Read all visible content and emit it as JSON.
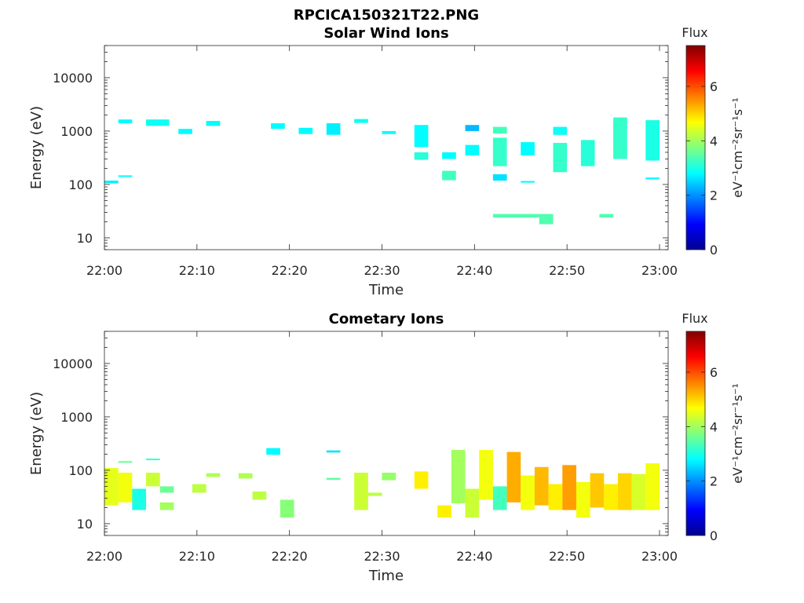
{
  "figure": {
    "title": "RPCICA150321T22.PNG"
  },
  "chart_data": [
    {
      "type": "heatmap",
      "title": "Solar Wind Ions",
      "xlabel": "Time",
      "ylabel": "Energy (eV)",
      "x_ticks": [
        "22:00",
        "22:10",
        "22:20",
        "22:30",
        "22:40",
        "22:50",
        "23:00"
      ],
      "xlim": [
        "22:00",
        "23:00"
      ],
      "y_scale": "log",
      "y_ticks": [
        "10",
        "100",
        "1000",
        "10000"
      ],
      "ylim": [
        6,
        40000
      ],
      "colorbar": {
        "title": "Flux",
        "label": "eV⁻¹cm⁻²sr⁻¹s⁻¹",
        "ticks": [
          "0",
          "2",
          "4",
          "6"
        ],
        "range": [
          0,
          7.5
        ],
        "colormap": "jet"
      },
      "cells": [
        {
          "t0": "22:00",
          "t1": "22:01.5",
          "e0": 105,
          "e1": 118,
          "flux": 2.7
        },
        {
          "t0": "22:01.5",
          "t1": "22:03",
          "e0": 1400,
          "e1": 1650,
          "flux": 2.8
        },
        {
          "t0": "22:01.5",
          "t1": "22:03",
          "e0": 138,
          "e1": 148,
          "flux": 2.8
        },
        {
          "t0": "22:04.5",
          "t1": "22:07",
          "e0": 1250,
          "e1": 1650,
          "flux": 2.9
        },
        {
          "t0": "22:08",
          "t1": "22:09.5",
          "e0": 880,
          "e1": 1100,
          "flux": 2.8
        },
        {
          "t0": "22:11",
          "t1": "22:12.5",
          "e0": 1250,
          "e1": 1550,
          "flux": 2.8
        },
        {
          "t0": "22:18",
          "t1": "22:19.5",
          "e0": 1100,
          "e1": 1400,
          "flux": 2.8
        },
        {
          "t0": "22:21",
          "t1": "22:22.5",
          "e0": 880,
          "e1": 1150,
          "flux": 2.8
        },
        {
          "t0": "22:24",
          "t1": "22:25.5",
          "e0": 850,
          "e1": 1400,
          "flux": 2.7
        },
        {
          "t0": "22:27",
          "t1": "22:28.5",
          "e0": 1420,
          "e1": 1680,
          "flux": 2.9
        },
        {
          "t0": "22:30",
          "t1": "22:31.5",
          "e0": 880,
          "e1": 1000,
          "flux": 2.8
        },
        {
          "t0": "22:33.5",
          "t1": "22:35",
          "e0": 500,
          "e1": 1300,
          "flux": 2.8
        },
        {
          "t0": "22:33.5",
          "t1": "22:35",
          "e0": 290,
          "e1": 400,
          "flux": 3.1
        },
        {
          "t0": "22:36.5",
          "t1": "22:38",
          "e0": 300,
          "e1": 400,
          "flux": 2.8
        },
        {
          "t0": "22:36.5",
          "t1": "22:38",
          "e0": 120,
          "e1": 180,
          "flux": 3.3
        },
        {
          "t0": "22:39",
          "t1": "22:40.5",
          "e0": 1000,
          "e1": 1300,
          "flux": 2.3
        },
        {
          "t0": "22:39",
          "t1": "22:40.5",
          "e0": 350,
          "e1": 550,
          "flux": 2.8
        },
        {
          "t0": "22:42",
          "t1": "22:43.5",
          "e0": 220,
          "e1": 750,
          "flux": 3.2
        },
        {
          "t0": "22:42",
          "t1": "22:43.5",
          "e0": 900,
          "e1": 1200,
          "flux": 3.3
        },
        {
          "t0": "22:42",
          "t1": "22:43.5",
          "e0": 118,
          "e1": 155,
          "flux": 2.6
        },
        {
          "t0": "22:42",
          "t1": "22:47",
          "e0": 24,
          "e1": 28,
          "flux": 3.4
        },
        {
          "t0": "22:47",
          "t1": "22:48.5",
          "e0": 18,
          "e1": 28,
          "flux": 3.4
        },
        {
          "t0": "22:45",
          "t1": "22:46.5",
          "e0": 350,
          "e1": 620,
          "flux": 2.8
        },
        {
          "t0": "22:45",
          "t1": "22:46.5",
          "e0": 108,
          "e1": 116,
          "flux": 2.8
        },
        {
          "t0": "22:48.5",
          "t1": "22:50",
          "e0": 170,
          "e1": 600,
          "flux": 3.2
        },
        {
          "t0": "22:48.5",
          "t1": "22:50",
          "e0": 850,
          "e1": 1200,
          "flux": 2.9
        },
        {
          "t0": "22:51.5",
          "t1": "22:53",
          "e0": 220,
          "e1": 680,
          "flux": 3.1
        },
        {
          "t0": "22:53.5",
          "t1": "22:55",
          "e0": 24,
          "e1": 28,
          "flux": 3.4
        },
        {
          "t0": "22:55",
          "t1": "22:56.5",
          "e0": 300,
          "e1": 1800,
          "flux": 3.2
        },
        {
          "t0": "22:58.5",
          "t1": "23:00",
          "e0": 280,
          "e1": 1600,
          "flux": 3.0
        },
        {
          "t0": "22:58.5",
          "t1": "23:00",
          "e0": 125,
          "e1": 135,
          "flux": 2.8
        }
      ]
    },
    {
      "type": "heatmap",
      "title": "Cometary Ions",
      "xlabel": "Time",
      "ylabel": "Energy (eV)",
      "x_ticks": [
        "22:00",
        "22:10",
        "22:20",
        "22:30",
        "22:40",
        "22:50",
        "23:00"
      ],
      "xlim": [
        "22:00",
        "23:00"
      ],
      "y_scale": "log",
      "y_ticks": [
        "10",
        "100",
        "1000",
        "10000"
      ],
      "ylim": [
        6,
        40000
      ],
      "colorbar": {
        "title": "Flux",
        "label": "eV⁻¹cm⁻²sr⁻¹s⁻¹",
        "ticks": [
          "0",
          "2",
          "4",
          "6"
        ],
        "range": [
          0,
          7.5
        ],
        "colormap": "jet"
      },
      "cells": [
        {
          "t0": "22:00",
          "t1": "22:01.5",
          "e0": 22,
          "e1": 110,
          "flux": 4.5
        },
        {
          "t0": "22:01.5",
          "t1": "22:03",
          "e0": 25,
          "e1": 90,
          "flux": 4.6
        },
        {
          "t0": "22:01.5",
          "t1": "22:03",
          "e0": 138,
          "e1": 148,
          "flux": 3.6
        },
        {
          "t0": "22:03",
          "t1": "22:04.5",
          "e0": 18,
          "e1": 45,
          "flux": 3.0
        },
        {
          "t0": "22:04.5",
          "t1": "22:06",
          "e0": 50,
          "e1": 90,
          "flux": 4.3
        },
        {
          "t0": "22:04.5",
          "t1": "22:06",
          "e0": 155,
          "e1": 165,
          "flux": 3.2
        },
        {
          "t0": "22:06",
          "t1": "22:07.5",
          "e0": 38,
          "e1": 50,
          "flux": 3.6
        },
        {
          "t0": "22:06",
          "t1": "22:07.5",
          "e0": 18,
          "e1": 25,
          "flux": 4.0
        },
        {
          "t0": "22:09.5",
          "t1": "22:11",
          "e0": 38,
          "e1": 55,
          "flux": 4.2
        },
        {
          "t0": "22:11",
          "t1": "22:12.5",
          "e0": 75,
          "e1": 88,
          "flux": 4.1
        },
        {
          "t0": "22:14.5",
          "t1": "22:16",
          "e0": 70,
          "e1": 88,
          "flux": 4.1
        },
        {
          "t0": "22:16",
          "t1": "22:17.5",
          "e0": 28,
          "e1": 40,
          "flux": 4.2
        },
        {
          "t0": "22:17.5",
          "t1": "22:19",
          "e0": 195,
          "e1": 260,
          "flux": 2.8
        },
        {
          "t0": "22:19",
          "t1": "22:20.5",
          "e0": 13,
          "e1": 28,
          "flux": 3.8
        },
        {
          "t0": "22:24",
          "t1": "22:25.5",
          "e0": 215,
          "e1": 235,
          "flux": 2.6
        },
        {
          "t0": "22:24",
          "t1": "22:25.5",
          "e0": 66,
          "e1": 72,
          "flux": 3.5
        },
        {
          "t0": "22:27",
          "t1": "22:28.5",
          "e0": 18,
          "e1": 90,
          "flux": 4.3
        },
        {
          "t0": "22:28.5",
          "t1": "22:30",
          "e0": 33,
          "e1": 38,
          "flux": 4.2
        },
        {
          "t0": "22:30",
          "t1": "22:31.5",
          "e0": 65,
          "e1": 90,
          "flux": 3.9
        },
        {
          "t0": "22:33.5",
          "t1": "22:35",
          "e0": 45,
          "e1": 95,
          "flux": 4.8
        },
        {
          "t0": "22:36",
          "t1": "22:37.5",
          "e0": 13,
          "e1": 22,
          "flux": 4.8
        },
        {
          "t0": "22:37.5",
          "t1": "22:39",
          "e0": 24,
          "e1": 240,
          "flux": 4.0
        },
        {
          "t0": "22:39",
          "t1": "22:40.5",
          "e0": 13,
          "e1": 45,
          "flux": 4.3
        },
        {
          "t0": "22:40.5",
          "t1": "22:42",
          "e0": 28,
          "e1": 240,
          "flux": 4.6
        },
        {
          "t0": "22:42",
          "t1": "22:43.5",
          "e0": 18,
          "e1": 50,
          "flux": 3.3
        },
        {
          "t0": "22:43.5",
          "t1": "22:45",
          "e0": 25,
          "e1": 220,
          "flux": 5.3
        },
        {
          "t0": "22:45",
          "t1": "22:46.5",
          "e0": 18,
          "e1": 80,
          "flux": 4.6
        },
        {
          "t0": "22:46.5",
          "t1": "22:48",
          "e0": 22,
          "e1": 115,
          "flux": 5.2
        },
        {
          "t0": "22:48",
          "t1": "22:49.5",
          "e0": 18,
          "e1": 55,
          "flux": 4.8
        },
        {
          "t0": "22:49.5",
          "t1": "22:51",
          "e0": 18,
          "e1": 125,
          "flux": 5.4
        },
        {
          "t0": "22:51",
          "t1": "22:52.5",
          "e0": 13,
          "e1": 60,
          "flux": 4.6
        },
        {
          "t0": "22:52.5",
          "t1": "22:54",
          "e0": 20,
          "e1": 88,
          "flux": 5.1
        },
        {
          "t0": "22:54",
          "t1": "22:55.5",
          "e0": 18,
          "e1": 55,
          "flux": 4.8
        },
        {
          "t0": "22:55.5",
          "t1": "22:57",
          "e0": 18,
          "e1": 88,
          "flux": 5.0
        },
        {
          "t0": "22:57",
          "t1": "22:58.5",
          "e0": 18,
          "e1": 85,
          "flux": 4.4
        },
        {
          "t0": "22:58.5",
          "t1": "23:00",
          "e0": 18,
          "e1": 135,
          "flux": 4.6
        }
      ]
    }
  ]
}
